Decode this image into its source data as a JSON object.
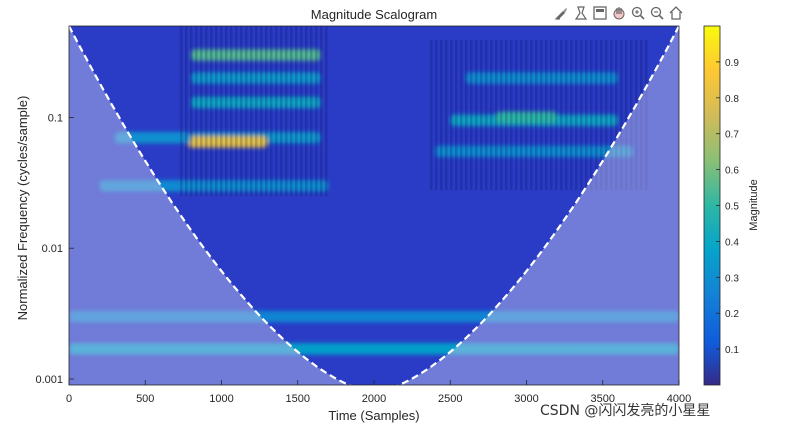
{
  "chart_data": {
    "type": "heatmap",
    "title": "Magnitude Scalogram",
    "xlabel": "Time (Samples)",
    "ylabel": "Normalized Frequency  (cycles/sample)",
    "xlim": [
      0,
      4000
    ],
    "ylim": [
      0.0009,
      0.5
    ],
    "y_scale": "log",
    "x_ticks": [
      0,
      500,
      1000,
      1500,
      2000,
      2500,
      3000,
      3500,
      4000
    ],
    "y_ticks": [
      0.001,
      0.01,
      0.1
    ],
    "y_tick_labels": [
      "0.001",
      "0.01",
      "0.1"
    ],
    "colorbar": {
      "label": "Magnitude",
      "range": [
        0,
        1
      ],
      "ticks": [
        0.1,
        0.2,
        0.3,
        0.4,
        0.5,
        0.6,
        0.7,
        0.8,
        0.9
      ]
    },
    "cone_of_influence": "dashed-white",
    "bands": [
      {
        "f": 0.3,
        "t0": 800,
        "t1": 1650,
        "mag": 0.55
      },
      {
        "f": 0.2,
        "t0": 800,
        "t1": 1650,
        "mag": 0.35
      },
      {
        "f": 0.13,
        "t0": 800,
        "t1": 1650,
        "mag": 0.4
      },
      {
        "f": 0.07,
        "t0": 800,
        "t1": 1650,
        "mag": 0.35
      },
      {
        "f": 0.065,
        "t0": 780,
        "t1": 1300,
        "mag": 0.82
      },
      {
        "f": 0.07,
        "t0": 300,
        "t1": 800,
        "mag": 0.32
      },
      {
        "f": 0.03,
        "t0": 200,
        "t1": 1700,
        "mag": 0.3
      },
      {
        "f": 0.055,
        "t0": 2400,
        "t1": 3700,
        "mag": 0.3
      },
      {
        "f": 0.095,
        "t0": 2500,
        "t1": 3600,
        "mag": 0.4
      },
      {
        "f": 0.1,
        "t0": 2800,
        "t1": 3200,
        "mag": 0.5
      },
      {
        "f": 0.2,
        "t0": 2600,
        "t1": 3600,
        "mag": 0.3
      },
      {
        "f": 0.003,
        "t0": 0,
        "t1": 4000,
        "mag": 0.28
      },
      {
        "f": 0.0017,
        "t0": 0,
        "t1": 4000,
        "mag": 0.38
      }
    ]
  },
  "watermark": "CSDN @闪闪发亮的小星星",
  "toolbar_icons": [
    "brush-icon",
    "data-tip-icon",
    "save-icon",
    "pan-icon",
    "zoom-in-icon",
    "zoom-out-icon",
    "home-icon"
  ]
}
